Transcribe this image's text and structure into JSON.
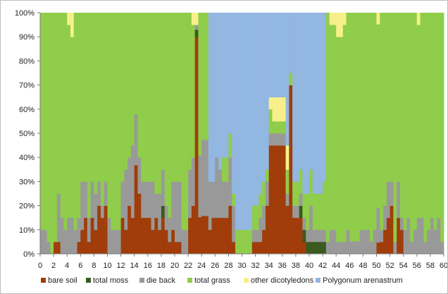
{
  "chart_data": {
    "type": "bar",
    "stacked": true,
    "normalized": true,
    "x_range": [
      0,
      60
    ],
    "x_ticks": [
      0,
      2,
      4,
      6,
      8,
      10,
      12,
      14,
      16,
      18,
      20,
      22,
      24,
      26,
      28,
      30,
      32,
      34,
      36,
      38,
      40,
      42,
      44,
      46,
      48,
      50,
      52,
      54,
      56,
      58,
      60
    ],
    "x_tick_labels": [
      "0",
      "2",
      "4",
      "6",
      "8",
      "10",
      "12",
      "14",
      "16",
      "18",
      "20",
      "22",
      "24",
      "26",
      "28",
      "30",
      "32",
      "34",
      "36",
      "38",
      "40",
      "42",
      "44",
      "46",
      "48",
      "50",
      "52",
      "54",
      "56",
      "58",
      "60"
    ],
    "ylim": [
      0,
      100
    ],
    "y_ticks": [
      0,
      10,
      20,
      30,
      40,
      50,
      60,
      70,
      80,
      90,
      100
    ],
    "y_tick_labels": [
      "0%",
      "10%",
      "20%",
      "30%",
      "40%",
      "50%",
      "60%",
      "70%",
      "80%",
      "90%",
      "100%"
    ],
    "legend_position": "bottom",
    "categories": [
      0,
      0.5,
      1,
      1.5,
      2,
      2.5,
      3,
      3.5,
      4,
      4.5,
      5,
      5.5,
      6,
      6.5,
      7,
      7.5,
      8,
      8.5,
      9,
      9.5,
      10,
      10.5,
      11,
      11.5,
      12,
      12.5,
      13,
      13.5,
      14,
      14.5,
      15,
      15.5,
      16,
      16.5,
      17,
      17.5,
      18,
      18.5,
      19,
      19.5,
      20,
      20.5,
      21,
      21.5,
      22,
      22.5,
      23,
      23.5,
      24,
      24.5,
      25,
      25.5,
      26,
      26.5,
      27,
      27.5,
      28,
      28.5,
      29,
      29.5,
      30,
      30.5,
      31,
      31.5,
      32,
      32.5,
      33,
      33.5,
      34,
      34.5,
      35,
      35.5,
      36,
      36.5,
      37,
      37.5,
      38,
      38.5,
      39,
      39.5,
      40,
      40.5,
      41,
      41.5,
      42,
      42.5,
      43,
      43.5,
      44,
      44.5,
      45,
      45.5,
      46,
      46.5,
      47,
      47.5,
      48,
      48.5,
      49,
      49.5,
      50,
      50.5,
      51,
      51.5,
      52,
      52.5,
      53,
      53.5,
      54,
      54.5,
      55,
      55.5,
      56,
      56.5,
      57,
      57.5,
      58,
      58.5,
      59,
      59.5
    ],
    "series": [
      {
        "name": "bare soil",
        "color": "#a03d0a",
        "values": [
          0,
          0,
          0,
          0,
          5,
          5,
          0,
          0,
          0,
          0,
          0,
          5,
          10,
          15,
          5,
          15,
          10,
          20,
          15,
          20,
          0,
          0,
          0,
          0,
          15,
          10,
          20,
          15,
          35,
          25,
          15,
          15,
          15,
          10,
          15,
          10,
          15,
          10,
          5,
          10,
          5,
          5,
          0,
          0,
          15,
          20,
          90,
          15,
          15,
          15,
          10,
          15,
          15,
          15,
          15,
          15,
          20,
          5,
          0,
          0,
          0,
          0,
          0,
          5,
          5,
          5,
          10,
          20,
          45,
          45,
          45,
          45,
          45,
          20,
          70,
          15,
          15,
          15,
          5,
          0,
          0,
          0,
          0,
          0,
          0,
          0,
          0,
          0,
          0,
          0,
          0,
          0,
          0,
          0,
          0,
          0,
          0,
          0,
          0,
          0,
          5,
          5,
          10,
          15,
          20,
          0,
          15,
          10,
          0,
          0,
          0,
          0,
          0,
          0,
          0,
          0,
          0,
          0,
          0,
          0
        ]
      },
      {
        "name": "total moss",
        "color": "#3a5a1e",
        "values": [
          0,
          0,
          0,
          0,
          0,
          0,
          0,
          0,
          0,
          0,
          0,
          0,
          0,
          0,
          0,
          0,
          0,
          0,
          0,
          0,
          0,
          0,
          0,
          0,
          0,
          0,
          0,
          0,
          0,
          0,
          0,
          0,
          0,
          0,
          0,
          0,
          5,
          0,
          0,
          0,
          0,
          0,
          0,
          0,
          0,
          0,
          3,
          0,
          0,
          0,
          0,
          0,
          0,
          0,
          0,
          0,
          0,
          0,
          0,
          0,
          0,
          0,
          0,
          0,
          0,
          0,
          0,
          0,
          0,
          0,
          0,
          0,
          0,
          0,
          0,
          0,
          0,
          5,
          5,
          5,
          5,
          5,
          5,
          5,
          5,
          0,
          0,
          0,
          0,
          0,
          0,
          0,
          0,
          0,
          0,
          0,
          0,
          0,
          0,
          0,
          0,
          0,
          0,
          0,
          0,
          0,
          0,
          0,
          0,
          0,
          0,
          0,
          0,
          0,
          0,
          0,
          0,
          0,
          0,
          0
        ]
      },
      {
        "name": "die back",
        "color": "#999999",
        "values": [
          10,
          10,
          5,
          0,
          0,
          20,
          15,
          10,
          15,
          15,
          10,
          10,
          20,
          15,
          10,
          15,
          15,
          10,
          5,
          10,
          15,
          10,
          10,
          10,
          15,
          25,
          20,
          30,
          20,
          15,
          15,
          15,
          15,
          20,
          10,
          15,
          15,
          10,
          10,
          20,
          25,
          25,
          10,
          10,
          20,
          20,
          2,
          25,
          30,
          30,
          20,
          15,
          25,
          20,
          15,
          15,
          20,
          15,
          0,
          0,
          0,
          0,
          0,
          5,
          5,
          10,
          10,
          10,
          5,
          5,
          5,
          5,
          5,
          5,
          0,
          5,
          5,
          5,
          5,
          5,
          15,
          5,
          5,
          5,
          5,
          5,
          10,
          10,
          5,
          5,
          5,
          10,
          5,
          5,
          5,
          10,
          10,
          10,
          5,
          10,
          15,
          5,
          10,
          15,
          10,
          5,
          15,
          5,
          10,
          15,
          5,
          10,
          15,
          15,
          5,
          10,
          15,
          10,
          15,
          5
        ]
      },
      {
        "name": "total grass",
        "color": "#8fcd4a",
        "values": [
          90,
          90,
          95,
          100,
          95,
          75,
          85,
          90,
          80,
          75,
          90,
          85,
          70,
          70,
          85,
          70,
          75,
          70,
          80,
          70,
          85,
          90,
          90,
          90,
          70,
          65,
          60,
          55,
          40,
          60,
          70,
          70,
          70,
          70,
          75,
          75,
          65,
          80,
          85,
          70,
          70,
          70,
          90,
          90,
          65,
          55,
          0,
          58,
          50,
          50,
          0,
          0,
          0,
          0,
          10,
          10,
          10,
          5,
          10,
          10,
          10,
          10,
          10,
          10,
          10,
          10,
          10,
          5,
          10,
          5,
          5,
          5,
          5,
          10,
          5,
          10,
          10,
          10,
          10,
          15,
          15,
          15,
          15,
          15,
          20,
          95,
          85,
          85,
          85,
          85,
          90,
          90,
          90,
          90,
          90,
          90,
          90,
          90,
          90,
          90,
          80,
          90,
          80,
          70,
          70,
          95,
          70,
          85,
          90,
          85,
          95,
          90,
          80,
          85,
          95,
          90,
          85,
          90,
          85,
          95
        ]
      },
      {
        "name": "other dicotyledons",
        "color": "#f7f08a",
        "values": [
          0,
          0,
          0,
          0,
          0,
          0,
          0,
          0,
          5,
          10,
          0,
          0,
          0,
          0,
          0,
          0,
          0,
          0,
          0,
          0,
          0,
          0,
          0,
          0,
          0,
          0,
          0,
          0,
          0,
          0,
          0,
          0,
          0,
          0,
          0,
          0,
          0,
          0,
          0,
          0,
          0,
          0,
          0,
          0,
          0,
          5,
          5,
          0,
          0,
          0,
          0,
          0,
          0,
          0,
          0,
          0,
          0,
          0,
          0,
          0,
          0,
          0,
          0,
          0,
          0,
          0,
          0,
          0,
          5,
          10,
          10,
          10,
          10,
          10,
          0,
          0,
          0,
          0,
          0,
          0,
          0,
          0,
          0,
          0,
          0,
          0,
          5,
          5,
          10,
          10,
          5,
          0,
          0,
          0,
          0,
          0,
          0,
          0,
          0,
          0,
          5,
          0,
          0,
          0,
          0,
          0,
          0,
          0,
          0,
          0,
          0,
          0,
          5,
          0,
          0,
          0,
          0,
          0,
          0,
          0
        ]
      },
      {
        "name": "Polygonum arenastrum",
        "color": "#92b7e0",
        "values": [
          0,
          0,
          0,
          0,
          0,
          0,
          0,
          0,
          0,
          0,
          0,
          0,
          0,
          0,
          0,
          0,
          0,
          0,
          0,
          0,
          0,
          0,
          0,
          0,
          0,
          0,
          0,
          0,
          0,
          0,
          0,
          0,
          0,
          0,
          0,
          0,
          0,
          0,
          0,
          0,
          0,
          0,
          0,
          0,
          0,
          0,
          0,
          0,
          0,
          0,
          70,
          70,
          60,
          65,
          60,
          60,
          50,
          75,
          90,
          90,
          90,
          90,
          90,
          80,
          80,
          75,
          70,
          65,
          35,
          35,
          35,
          35,
          35,
          55,
          25,
          70,
          70,
          65,
          75,
          75,
          65,
          75,
          75,
          75,
          70,
          0,
          0,
          0,
          0,
          0,
          0,
          0,
          0,
          0,
          0,
          0,
          0,
          0,
          0,
          0,
          0,
          0,
          0,
          0,
          0,
          0,
          0,
          0,
          0,
          0,
          0,
          0,
          0,
          0,
          0,
          0,
          0,
          0,
          0,
          0
        ]
      }
    ]
  }
}
